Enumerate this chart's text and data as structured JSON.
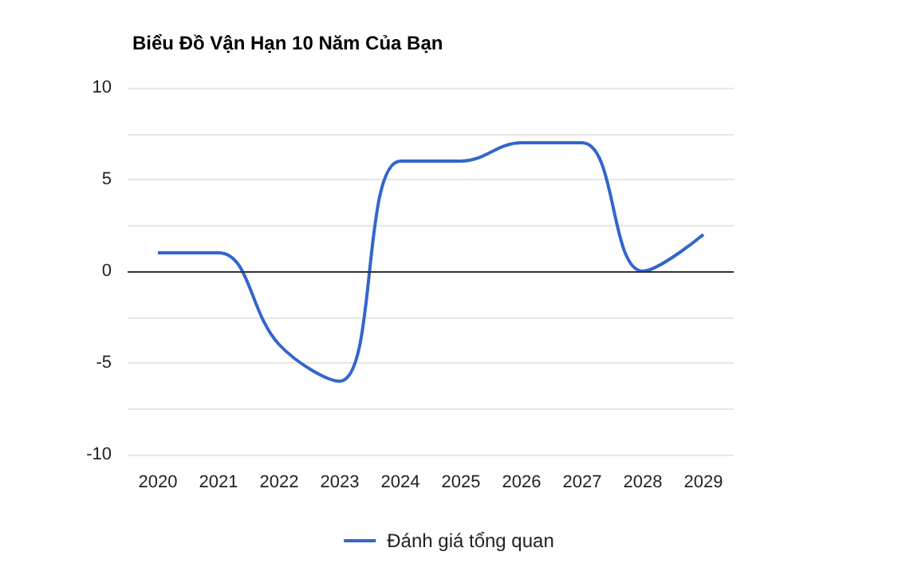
{
  "chart_data": {
    "type": "line",
    "title": "Biểu Đồ Vận Hạn 10 Năm Của Bạn",
    "categories": [
      "2020",
      "2021",
      "2022",
      "2023",
      "2024",
      "2025",
      "2026",
      "2027",
      "2028",
      "2029"
    ],
    "series": [
      {
        "name": "Đánh giá tổng quan",
        "color": "#3366cc",
        "values": [
          1,
          1,
          -4,
          -6,
          6,
          6,
          7,
          7,
          0,
          2
        ]
      }
    ],
    "ylim": [
      -10,
      10
    ],
    "yticks": [
      -10,
      {
        "value": -7.5,
        "label": null
      },
      -5,
      {
        "value": -2.5,
        "label": null
      },
      0,
      {
        "value": 2.5,
        "label": null
      },
      5,
      {
        "value": 7.5,
        "label": null
      },
      10
    ],
    "ref_lines": [
      {
        "axis": "y",
        "value": 0,
        "color": "#333333"
      }
    ],
    "grid": "y",
    "legend": "bottom",
    "marker": "none",
    "line_style": "solid"
  }
}
